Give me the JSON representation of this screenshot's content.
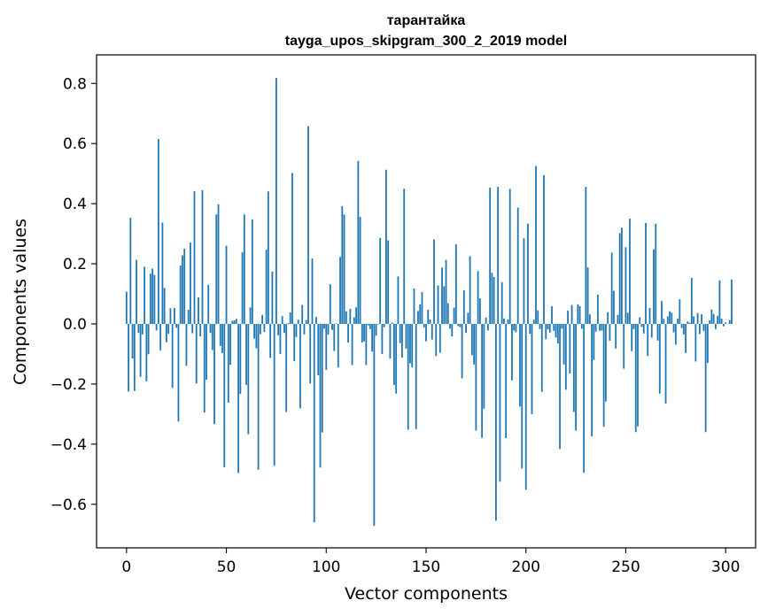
{
  "chart_data": {
    "type": "bar",
    "title": "тарантайка",
    "subtitle": "tayga_upos_skipgram_300_2_2019 model",
    "xlabel": "Vector components",
    "ylabel": "Components values",
    "xlim": [
      -15,
      315
    ],
    "ylim": [
      -0.745,
      0.895
    ],
    "x_ticks": [
      0,
      50,
      100,
      150,
      200,
      250,
      300
    ],
    "y_ticks": [
      -0.6,
      -0.4,
      -0.2,
      0.0,
      0.2,
      0.4,
      0.6,
      0.8
    ],
    "x_tick_labels": [
      "0",
      "50",
      "100",
      "150",
      "200",
      "250",
      "300"
    ],
    "y_tick_labels": [
      "−0.6",
      "−0.4",
      "−0.2",
      "0.0",
      "0.2",
      "0.4",
      "0.6",
      "0.8"
    ],
    "bar_color": "#1f77b4",
    "values": [
      0.107,
      -0.225,
      0.353,
      -0.115,
      -0.223,
      0.213,
      -0.03,
      -0.176,
      -0.035,
      0.19,
      -0.191,
      -0.101,
      0.167,
      0.184,
      0.163,
      -0.022,
      0.615,
      -0.088,
      0.337,
      0.12,
      -0.061,
      -0.033,
      0.052,
      -0.213,
      0.053,
      -0.013,
      -0.325,
      0.194,
      0.228,
      0.25,
      -0.139,
      0.047,
      0.271,
      -0.031,
      0.442,
      -0.198,
      0.088,
      -0.042,
      0.445,
      -0.295,
      -0.186,
      0.13,
      -0.03,
      -0.087,
      -0.333,
      0.364,
      0.398,
      -0.073,
      -0.097,
      -0.477,
      0.26,
      -0.262,
      -0.136,
      0.01,
      0.012,
      0.017,
      -0.496,
      -0.233,
      0.238,
      0.364,
      -0.203,
      -0.367,
      0.055,
      0.348,
      -0.049,
      -0.081,
      -0.485,
      -0.034,
      0.03,
      -0.027,
      0.247,
      0.441,
      -0.113,
      0.174,
      -0.472,
      0.818,
      -0.038,
      -0.1,
      0.026,
      -0.03,
      -0.293,
      0.003,
      0.038,
      0.502,
      -0.124,
      -0.044,
      0.014,
      -0.281,
      0.063,
      -0.035,
      0.013,
      0.658,
      -0.198,
      0.218,
      -0.66,
      0.023,
      -0.171,
      -0.478,
      -0.361,
      -0.016,
      -0.153,
      -0.036,
      0.132,
      -0.02,
      -0.09,
      0.002,
      -0.145,
      0.223,
      0.392,
      0.364,
      0.042,
      -0.062,
      0.05,
      -0.137,
      0.022,
      0.055,
      0.542,
      0.356,
      -0.062,
      -0.058,
      -0.137,
      -0.005,
      -0.017,
      -0.092,
      -0.672,
      -0.039,
      -0.002,
      0.286,
      -0.1,
      -0.011,
      0.513,
      0.278,
      -0.115,
      0.004,
      -0.203,
      -0.232,
      0.158,
      -0.064,
      -0.112,
      0.45,
      -0.082,
      -0.352,
      -0.131,
      -0.144,
      0.118,
      -0.35,
      0.043,
      0.065,
      0.106,
      -0.012,
      -0.058,
      0.047,
      0.015,
      -0.052,
      0.281,
      -0.107,
      0.128,
      -0.096,
      0.187,
      0.125,
      0.213,
      0.069,
      -0.016,
      -0.042,
      0.054,
      0.265,
      -0.007,
      -0.011,
      -0.181,
      0.112,
      -0.03,
      0.037,
      0.225,
      -0.104,
      -0.135,
      -0.355,
      0.176,
      0.085,
      -0.379,
      -0.282,
      0.021,
      -0.022,
      0.453,
      0.17,
      0.156,
      -0.655,
      0.456,
      -0.525,
      0.139,
      0.018,
      -0.38,
      0.015,
      0.449,
      -0.188,
      -0.022,
      -0.028,
      0.387,
      -0.275,
      -0.481,
      0.285,
      -0.552,
      0.334,
      -0.033,
      -0.3,
      0.014,
      0.525,
      0.045,
      -0.017,
      -0.226,
      0.495,
      -0.051,
      -0.018,
      -0.029,
      0.059,
      -0.023,
      -0.045,
      -0.065,
      -0.416,
      -0.016,
      -0.135,
      -0.219,
      0.044,
      -0.165,
      0.063,
      -0.293,
      -0.355,
      0.065,
      0.059,
      -0.016,
      -0.495,
      0.456,
      0.188,
      0.032,
      -0.374,
      -0.12,
      -0.026,
      0.097,
      -0.023,
      -0.022,
      -0.342,
      -0.258,
      0.039,
      -0.056,
      0.237,
      0.11,
      -0.082,
      0.03,
      0.302,
      0.32,
      -0.149,
      0.255,
      0.037,
      0.35,
      -0.091,
      -0.017,
      -0.36,
      -0.341,
      0.022,
      -0.01,
      -0.032,
      0.336,
      -0.107,
      0.053,
      -0.046,
      0.248,
      0.333,
      -0.055,
      -0.232,
      0.076,
      0.017,
      -0.265,
      0.025,
      0.042,
      0.037,
      -0.028,
      -0.069,
      0.018,
      0.082,
      -0.014,
      -0.035,
      -0.097,
      0.008,
      0.004,
      0.153,
      0.025,
      -0.125,
      0.036,
      -0.034,
      0.032,
      -0.023,
      -0.36,
      -0.13,
      0.012,
      0.048,
      0.033,
      -0.017,
      0.027,
      0.145,
      0.017,
      -0.008,
      0.005,
      0.0,
      0.013,
      0.148
    ]
  }
}
